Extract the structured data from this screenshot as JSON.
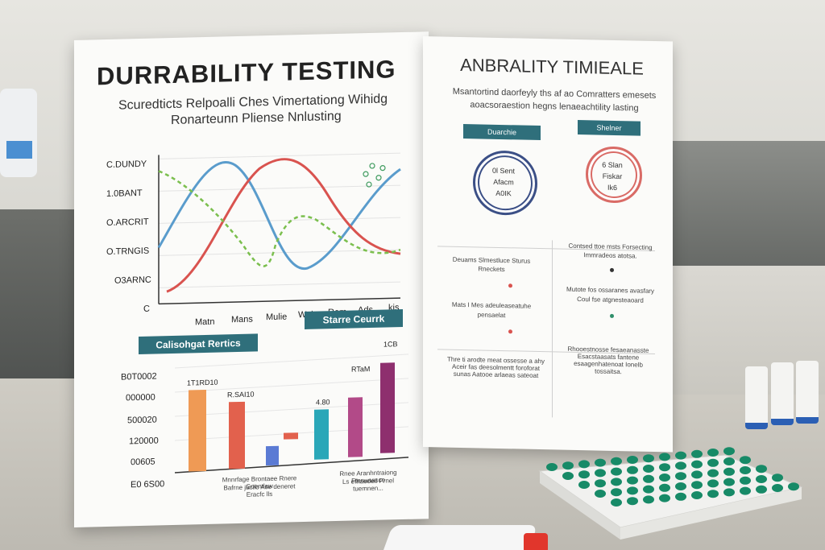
{
  "left_poster": {
    "title": "DURRABILITY TESTING",
    "subtitle_1": "Scuredticts Relpoalli Ches Vimertationg Wihidg",
    "subtitle_2": "Ronarteunn Pliense Nnlusting",
    "line_chart_y_labels": [
      "C.DUNDY",
      "1.0BANT",
      "O.ARCRIT",
      "O.TRNGIS",
      "O3ARNC",
      "C"
    ],
    "line_chart_x_labels": [
      "Matn",
      "Mans",
      "Mulie",
      "Wah",
      "Rem",
      "Ads",
      "kis"
    ],
    "bar_section_title_left": "Calisohgat Rertics",
    "bar_section_title_right": "Starre Ceurrk",
    "bar_chart_y_labels": [
      "B0T0002",
      "000000",
      "500020",
      "120000",
      "00605",
      "E0 6S00"
    ],
    "bar_value_labels": [
      "1T1RD10",
      "R.SAI10",
      "4.80",
      "RTaM",
      "1CB"
    ],
    "bar_footnote_1": "Mnnrfage Brontaee Rnere Goentlaw",
    "bar_footnote_2": "Bafrne jacilo Ase deneret Eracfc lls",
    "bar_footnote_3": "Rnee Aranhntraiong Ftenunasco",
    "bar_footnote_4": "Ls efhaedeil Prnel tuemnen..."
  },
  "right_poster": {
    "title": "ANBRALITY TIMIEALE",
    "subtitle_1": "Msantortind daorfeyly ths af ao Comratters emesets",
    "subtitle_2": "aoacsoraestion hegns lenaeachtility lasting",
    "banner_left": "Duarchie",
    "banner_right": "Shelner",
    "ring_left_lines": [
      "0l Sent",
      "Afacm",
      "A0IK"
    ],
    "ring_right_lines": [
      "6 Slan",
      "Fiskar",
      "Ik6"
    ],
    "left_col_text_1": "Deuams Slmestluce Sturus",
    "left_col_text_2": "Rneckets",
    "left_col_text_3": "Mats I Mes adeuleaseatuhe",
    "left_col_text_4": "pensaelat",
    "right_col_text_1": "Contsed ttoe msts Forsecting",
    "right_col_text_2": "Immradeos atotsa.",
    "right_col_text_3": "Mutote fos ossaranes avasfary",
    "right_col_text_4": "Coul fse atgnesteaoard",
    "bottom_left_text": "Thre ti arodte meat ossesse a ahy Aceir fas deesolmentt foroforat sunas Aatooe arlaeas sateoat",
    "bottom_right_text": "Rhooestnosse fesaeanasste Esacstaasats fantene esaagenhatenoat Ionelb tossaitsa."
  },
  "colors": {
    "teal_banner": "#2f6f7b",
    "line_blue": "#5a9ccc",
    "line_red": "#d9534f",
    "line_green": "#7bbf4e",
    "bar_orange": "#ef9a55",
    "bar_red": "#e2614d",
    "bar_blue": "#5b7bd4",
    "bar_teal": "#2aa7b8",
    "bar_magenta": "#b24a88",
    "bar_purple": "#8e2f6e",
    "cap_green": "#178a67"
  }
}
